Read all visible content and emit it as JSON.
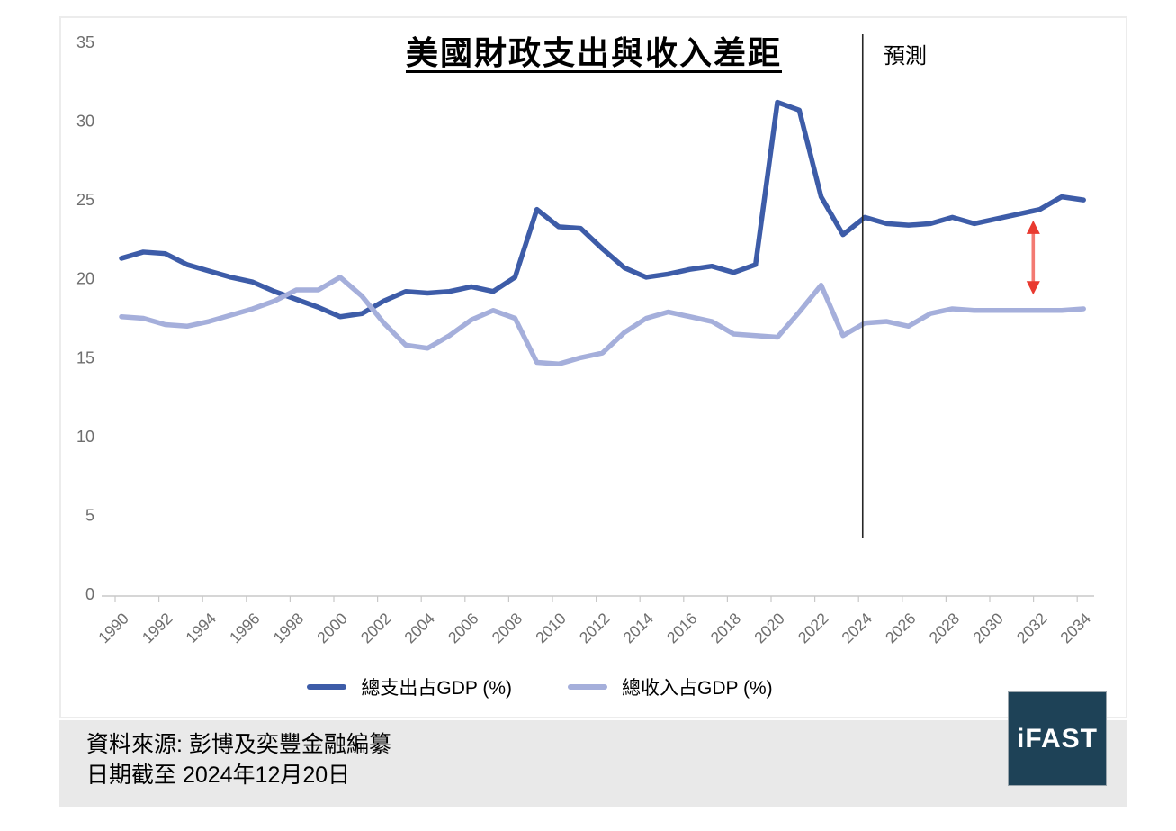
{
  "title": "美國財政支出與收入差距",
  "footer": {
    "source_line": "資料來源: 彭博及奕豐金融編纂",
    "date_line": "日期截至 2024年12月20日"
  },
  "logo": {
    "text": "iFAST",
    "bg": "#1E4257"
  },
  "chart_data": {
    "type": "line",
    "title": "美國財政支出與收入差距",
    "xlabel": "",
    "ylabel": "",
    "ylim": [
      0,
      35
    ],
    "grid": false,
    "legend_position": "bottom",
    "yticks": [
      0,
      5,
      10,
      15,
      20,
      25,
      30,
      35
    ],
    "xticks": [
      1990,
      1992,
      1994,
      1996,
      1998,
      2000,
      2002,
      2004,
      2006,
      2008,
      2010,
      2012,
      2014,
      2016,
      2018,
      2020,
      2022,
      2024,
      2026,
      2028,
      2030,
      2032,
      2034
    ],
    "x": [
      1990,
      1991,
      1992,
      1993,
      1994,
      1995,
      1996,
      1997,
      1998,
      1999,
      2000,
      2001,
      2002,
      2003,
      2004,
      2005,
      2006,
      2007,
      2008,
      2009,
      2010,
      2011,
      2012,
      2013,
      2014,
      2015,
      2016,
      2017,
      2018,
      2019,
      2020,
      2021,
      2022,
      2023,
      2024,
      2025,
      2026,
      2027,
      2028,
      2029,
      2030,
      2031,
      2032,
      2033,
      2034
    ],
    "series": [
      {
        "name": "總支出占GDP (%)",
        "color": "#3D5CA8",
        "values": [
          21.3,
          21.7,
          21.6,
          20.9,
          20.5,
          20.1,
          19.8,
          19.2,
          18.7,
          18.2,
          17.6,
          17.8,
          18.6,
          19.2,
          19.1,
          19.2,
          19.5,
          19.2,
          20.1,
          24.4,
          23.3,
          23.2,
          21.9,
          20.7,
          20.1,
          20.3,
          20.6,
          20.8,
          20.4,
          20.9,
          31.2,
          30.7,
          25.2,
          22.8,
          23.9,
          23.5,
          23.4,
          23.5,
          23.9,
          23.5,
          23.8,
          24.1,
          24.4,
          25.2,
          25.0
        ]
      },
      {
        "name": "總收入占GDP (%)",
        "color": "#A5AFDB",
        "values": [
          17.6,
          17.5,
          17.1,
          17.0,
          17.3,
          17.7,
          18.1,
          18.6,
          19.3,
          19.3,
          20.1,
          18.9,
          17.2,
          15.8,
          15.6,
          16.4,
          17.4,
          18.0,
          17.5,
          14.7,
          14.6,
          15.0,
          15.3,
          16.6,
          17.5,
          17.9,
          17.6,
          17.3,
          16.5,
          16.4,
          16.3,
          17.9,
          19.6,
          16.4,
          17.2,
          17.3,
          17.0,
          17.8,
          18.1,
          18.0,
          18.0,
          18.0,
          18.0,
          18.0,
          18.1
        ]
      }
    ],
    "forecast_line": {
      "year": 2023.9,
      "label": "預測"
    },
    "annotation": {
      "type": "double-arrow",
      "year": 2031.7,
      "value_top": 23.7,
      "value_bottom": 19.0,
      "shaft_color": "#F37A72",
      "head_color": "#E93A30"
    }
  }
}
